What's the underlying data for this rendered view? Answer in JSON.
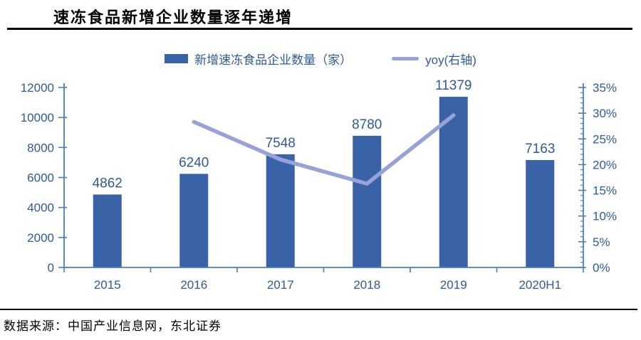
{
  "header": {
    "title": "速冻食品新增企业数量逐年递增"
  },
  "legend": {
    "items": [
      {
        "label": "新增速冻食品企业数量（家）",
        "swatch": "bar-swatch"
      },
      {
        "label": "yoy(右轴)",
        "swatch": "line-swatch"
      }
    ]
  },
  "colors": {
    "bar": "#3A62A6",
    "line": "#97A3D8",
    "axis": "#4A7EBB",
    "text": "#2E5B97",
    "rule": "#000000"
  },
  "chart_data": {
    "type": "bar",
    "title": "速冻食品新增企业数量逐年递增",
    "categories": [
      "2015",
      "2016",
      "2017",
      "2018",
      "2019",
      "2020H1"
    ],
    "series": [
      {
        "name": "新增速冻食品企业数量（家）",
        "type": "bar",
        "axis": "left",
        "values": [
          4862,
          6240,
          7548,
          8780,
          11379,
          7163
        ],
        "data_labels": [
          "4862",
          "6240",
          "7548",
          "8780",
          "11379",
          "7163"
        ]
      },
      {
        "name": "yoy(右轴)",
        "type": "line",
        "axis": "right",
        "values": [
          null,
          28.3,
          21.0,
          16.3,
          29.6,
          null
        ]
      }
    ],
    "left_axis": {
      "min": 0,
      "max": 12000,
      "step": 2000,
      "tick_labels": [
        "0",
        "2000",
        "4000",
        "6000",
        "8000",
        "10000",
        "12000"
      ]
    },
    "right_axis": {
      "min": 0,
      "max": 35,
      "step": 5,
      "minor_step": 1,
      "tick_labels": [
        "0%",
        "5%",
        "10%",
        "15%",
        "20%",
        "25%",
        "30%",
        "35%"
      ]
    },
    "legend_position": "top",
    "grid": false
  },
  "footer": {
    "source": "数据来源：中国产业信息网，东北证券"
  }
}
